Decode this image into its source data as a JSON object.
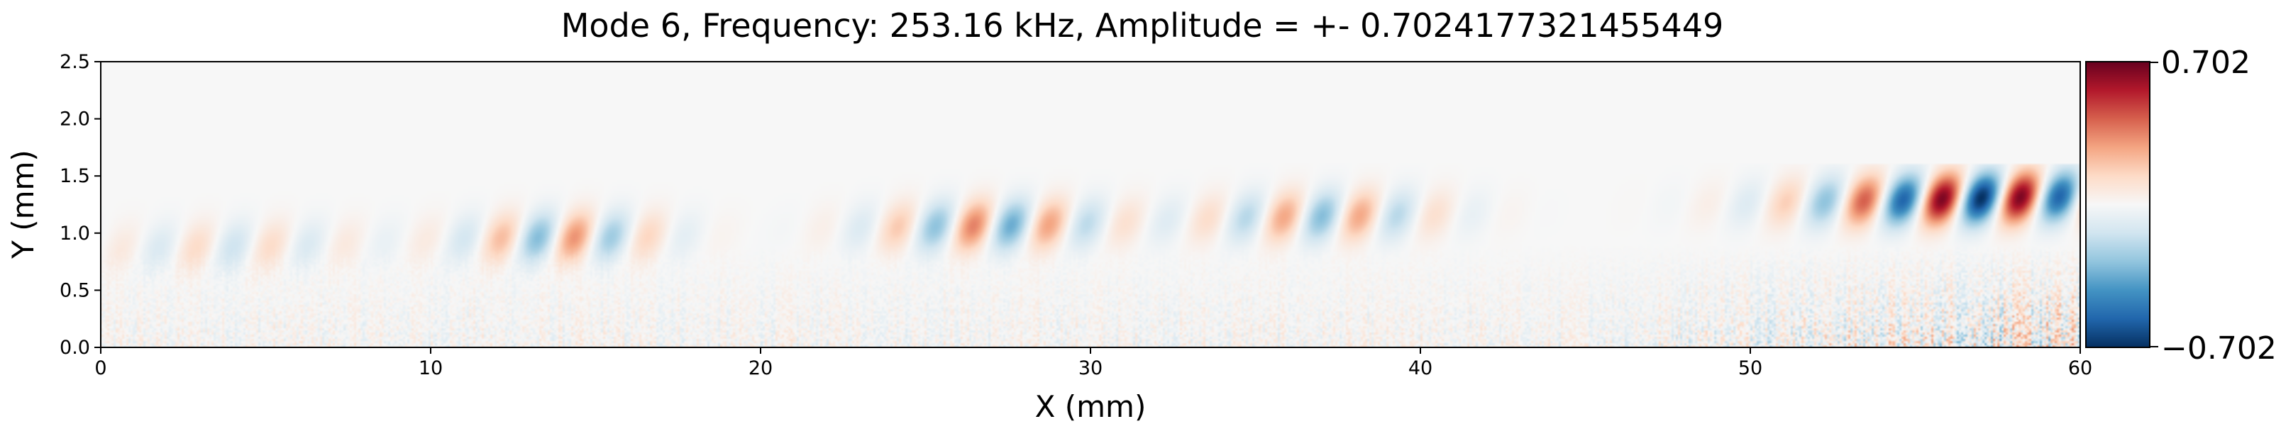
{
  "chart_data": {
    "type": "heatmap",
    "title": "Mode 6, Frequency: 253.16 kHz, Amplitude = +- 0.7024177321455449",
    "xlabel": "X (mm)",
    "ylabel": "Y (mm)",
    "xlim": [
      0,
      60
    ],
    "ylim": [
      0,
      2.5
    ],
    "x_ticks": [
      "0",
      "10",
      "20",
      "30",
      "40",
      "50",
      "60"
    ],
    "y_ticks": [
      "0.0",
      "0.5",
      "1.0",
      "1.5",
      "2.0",
      "2.5"
    ],
    "colorbar": {
      "min": -0.702,
      "max": 0.702,
      "min_label": "−0.702",
      "max_label": "0.702",
      "colormap": "RdBu_r"
    },
    "wave_packets": [
      {
        "x_center": 4,
        "x_width": 4,
        "wavelength": 2.3,
        "amplitude": 0.14
      },
      {
        "x_center": 14,
        "x_width": 3,
        "wavelength": 2.3,
        "amplitude": 0.32
      },
      {
        "x_center": 27,
        "x_width": 3.5,
        "wavelength": 2.35,
        "amplitude": 0.36
      },
      {
        "x_center": 37,
        "x_width": 3.5,
        "wavelength": 2.35,
        "amplitude": 0.3
      },
      {
        "x_center": 57,
        "x_width": 5,
        "wavelength": 2.4,
        "amplitude": 0.7
      }
    ],
    "wave_height_range": [
      0.5,
      1.6
    ],
    "noise_height_range": [
      0,
      0.9
    ]
  }
}
